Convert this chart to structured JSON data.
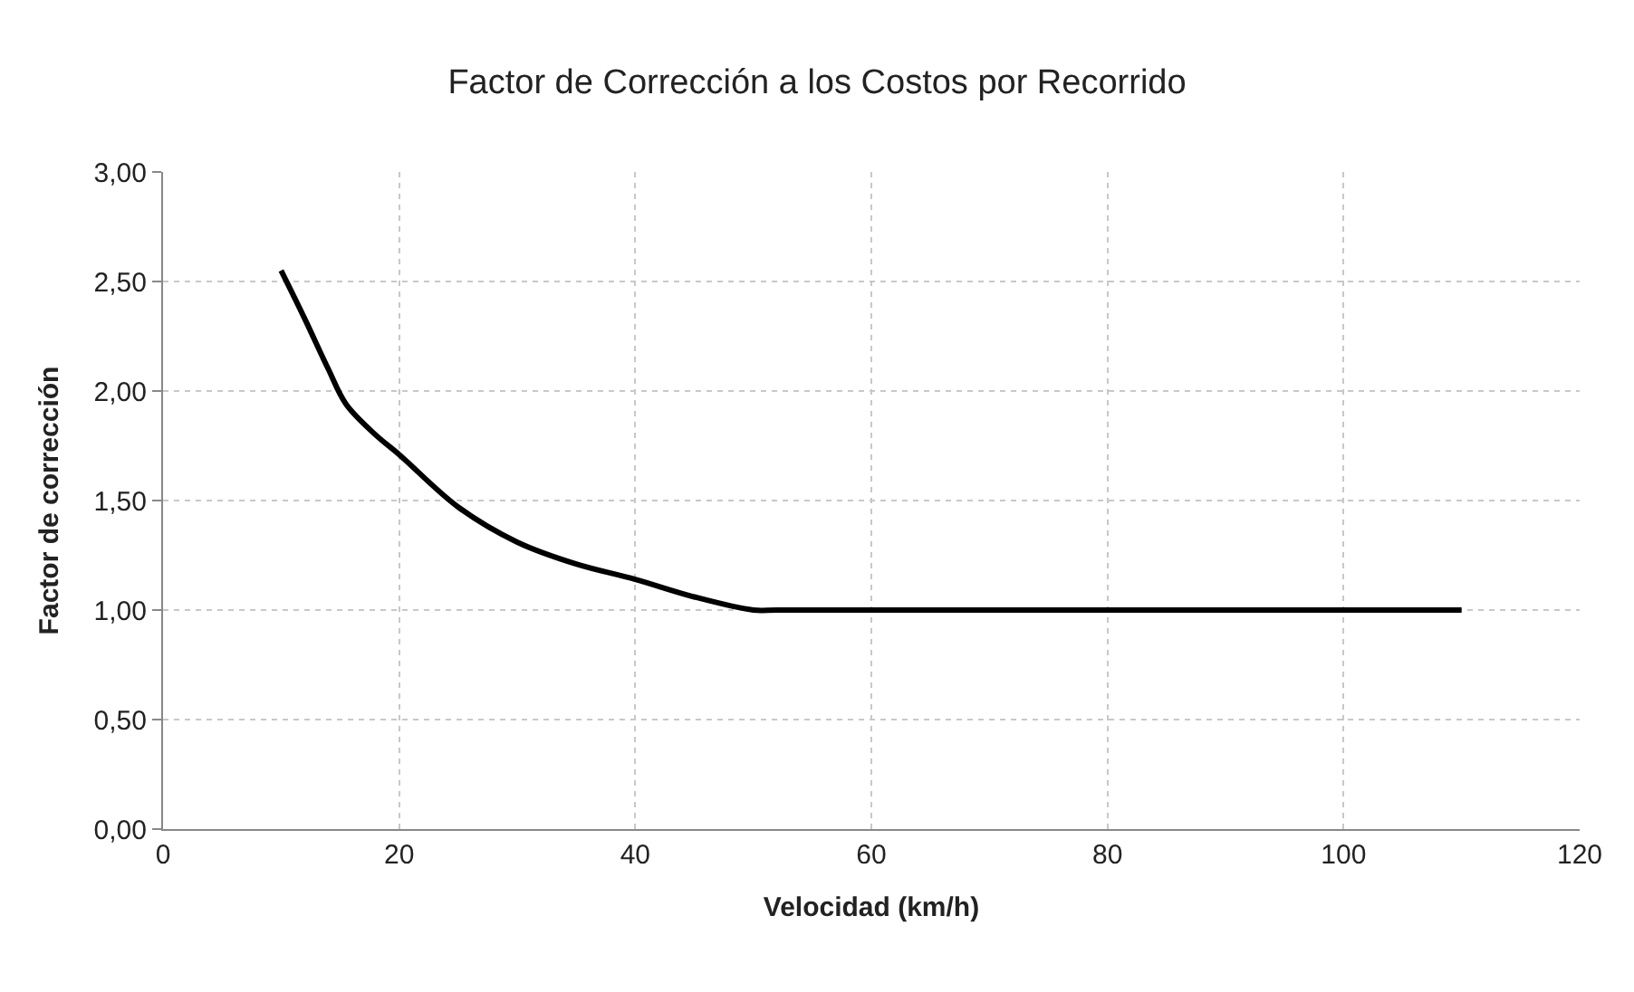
{
  "chart_data": {
    "type": "line",
    "title": "Factor de Corrección a los Costos por Recorrido",
    "xlabel": "Velocidad (km/h)",
    "ylabel": "Factor de corrección",
    "x": [
      10,
      12,
      14,
      15.5,
      18,
      20,
      25,
      30,
      35,
      40,
      45,
      50,
      52,
      60,
      80,
      100,
      110
    ],
    "series": [
      {
        "color": "#000000",
        "values": [
          2.55,
          2.33,
          2.1,
          1.94,
          1.8,
          1.71,
          1.47,
          1.31,
          1.21,
          1.14,
          1.06,
          1.0,
          1.0,
          1.0,
          1.0,
          1.0,
          1.0
        ]
      }
    ],
    "xlim": [
      0,
      120
    ],
    "xticks": [
      0,
      20,
      40,
      60,
      80,
      100,
      120
    ],
    "ylim": [
      0,
      3
    ],
    "yticks": [
      {
        "value": 0,
        "label": "0,00"
      },
      {
        "value": 0.5,
        "label": "0,50"
      },
      {
        "value": 1,
        "label": "1,00"
      },
      {
        "value": 1.5,
        "label": "1,50"
      },
      {
        "value": 2,
        "label": "2,00"
      },
      {
        "value": 2.5,
        "label": "2,50"
      },
      {
        "value": 3,
        "label": "3,00"
      }
    ],
    "grid": true,
    "marker": "none",
    "line_style": "solid"
  }
}
